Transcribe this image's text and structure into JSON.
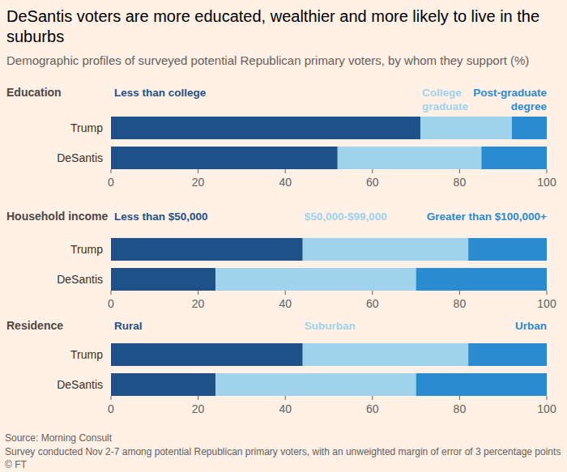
{
  "header": {
    "title": "DeSantis voters are more educated, wealthier and more likely to live in the suburbs",
    "subtitle": "Demographic profiles of surveyed potential Republican primary voters, by whom they support (%)"
  },
  "chart_data": [
    {
      "type": "bar",
      "orientation": "horizontal",
      "stacked": true,
      "grid": false,
      "title": "Education",
      "categories": [
        "Trump",
        "DeSantis"
      ],
      "series": [
        {
          "name": "Less than college",
          "color": "#1f5189",
          "values": [
            71,
            52
          ]
        },
        {
          "name": "College graduate",
          "color": "#9fd3ec",
          "values": [
            21,
            33
          ]
        },
        {
          "name": "Post-graduate degree",
          "color": "#2a8bd0",
          "values": [
            8,
            15
          ]
        }
      ],
      "xlim": [
        0,
        100
      ],
      "xticks": [
        0,
        20,
        40,
        60,
        80,
        100
      ]
    },
    {
      "type": "bar",
      "orientation": "horizontal",
      "stacked": true,
      "grid": false,
      "title": "Household income",
      "categories": [
        "Trump",
        "DeSantis"
      ],
      "series": [
        {
          "name": "Less than $50,000",
          "color": "#1f5189",
          "values": [
            44,
            24
          ]
        },
        {
          "name": "$50,000-$99,000",
          "color": "#9fd3ec",
          "values": [
            38,
            46
          ]
        },
        {
          "name": "Greater than $100,000+",
          "color": "#2a8bd0",
          "values": [
            18,
            30
          ]
        }
      ],
      "xlim": [
        0,
        100
      ],
      "xticks": [
        0,
        20,
        40,
        60,
        80,
        100
      ]
    },
    {
      "type": "bar",
      "orientation": "horizontal",
      "stacked": true,
      "grid": false,
      "title": "Residence",
      "categories": [
        "Trump",
        "DeSantis"
      ],
      "series": [
        {
          "name": "Rural",
          "color": "#1f5189",
          "values": [
            44,
            24
          ]
        },
        {
          "name": "Suburban",
          "color": "#9fd3ec",
          "values": [
            38,
            46
          ]
        },
        {
          "name": "Urban",
          "color": "#2a8bd0",
          "values": [
            18,
            30
          ]
        }
      ],
      "xlim": [
        0,
        100
      ],
      "xticks": [
        0,
        20,
        40,
        60,
        80,
        100
      ]
    }
  ],
  "footer": {
    "source": "Source: Morning Consult",
    "note": "Survey conducted Nov 2-7 among potential Republican primary voters, with an unweighted margin of error of 3 percentage points",
    "credit": "© FT"
  }
}
